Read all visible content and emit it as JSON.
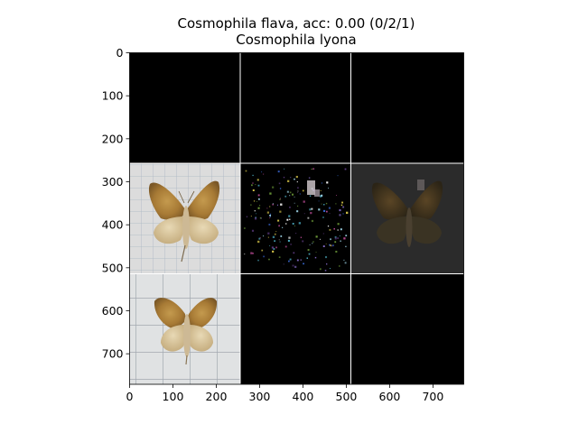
{
  "title": {
    "line1": "Cosmophila flava, acc: 0.00 (0/2/1)",
    "line2": "Cosmophila lyona"
  },
  "axes": {
    "x_range": [
      0,
      771
    ],
    "y_range": [
      0,
      771
    ],
    "y_inverted": true,
    "x_ticks": [
      "0",
      "100",
      "200",
      "300",
      "400",
      "500",
      "600",
      "700"
    ],
    "y_ticks": [
      "0",
      "100",
      "200",
      "300",
      "400",
      "500",
      "600",
      "700"
    ]
  },
  "grid": {
    "rows": 3,
    "cols": 3,
    "tile_size": 257,
    "tiles": [
      {
        "row": 0,
        "col": 0,
        "kind": "blank",
        "color": "#000000"
      },
      {
        "row": 0,
        "col": 1,
        "kind": "blank",
        "color": "#000000"
      },
      {
        "row": 0,
        "col": 2,
        "kind": "blank",
        "color": "#000000"
      },
      {
        "row": 1,
        "col": 0,
        "kind": "moth-photo",
        "color": "#d9dadb"
      },
      {
        "row": 1,
        "col": 1,
        "kind": "noise-map",
        "color": "#000000"
      },
      {
        "row": 1,
        "col": 2,
        "kind": "dark-overlay",
        "color": "#2a2a2a"
      },
      {
        "row": 2,
        "col": 0,
        "kind": "moth-photo",
        "color": "#dcdedf"
      },
      {
        "row": 2,
        "col": 1,
        "kind": "blank",
        "color": "#000000"
      },
      {
        "row": 2,
        "col": 2,
        "kind": "blank",
        "color": "#000000"
      }
    ]
  }
}
